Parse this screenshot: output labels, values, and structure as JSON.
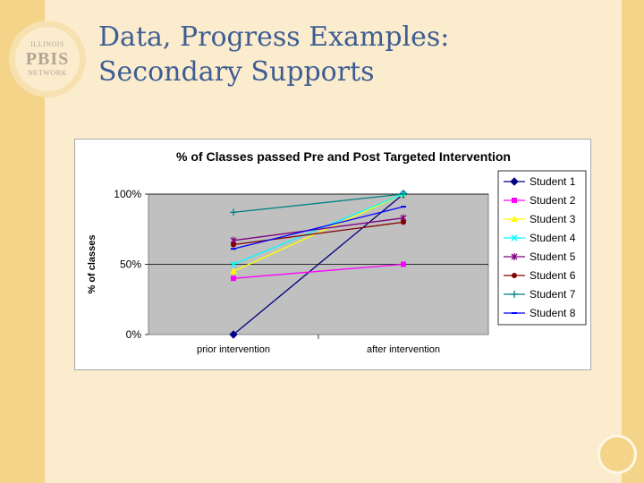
{
  "slide": {
    "title_line1": "Data, Progress Examples:",
    "title_line2": "Secondary Supports"
  },
  "logo": {
    "top_text": "ILLINOIS",
    "main_text": "PBIS",
    "bottom_text": "NETWORK"
  },
  "colors": {
    "background": "#fbeccd",
    "band": "#f3d489",
    "title": "#3e5d94",
    "plot_area": "#c0c0c0"
  },
  "chart_data": {
    "type": "line",
    "title": "% of Classes passed Pre and Post Targeted Intervention",
    "xlabel": "",
    "ylabel": "% of classes",
    "categories": [
      "prior intervention",
      "after intervention"
    ],
    "ylim": [
      0,
      100
    ],
    "yticks": [
      "0%",
      "50%",
      "100%"
    ],
    "grid": true,
    "legend_position": "right",
    "series": [
      {
        "name": "Student 1",
        "values": [
          0,
          100
        ],
        "color": "#000080",
        "marker": "diamond"
      },
      {
        "name": "Student 2",
        "values": [
          40,
          50
        ],
        "color": "#ff00ff",
        "marker": "square"
      },
      {
        "name": "Student 3",
        "values": [
          45,
          100
        ],
        "color": "#ffff00",
        "marker": "triangle"
      },
      {
        "name": "Student 4",
        "values": [
          50,
          100
        ],
        "color": "#00ffff",
        "marker": "x"
      },
      {
        "name": "Student 5",
        "values": [
          67,
          83
        ],
        "color": "#800080",
        "marker": "star"
      },
      {
        "name": "Student 6",
        "values": [
          64,
          80
        ],
        "color": "#800000",
        "marker": "circle"
      },
      {
        "name": "Student 7",
        "values": [
          87,
          100
        ],
        "color": "#008080",
        "marker": "plus"
      },
      {
        "name": "Student 8",
        "values": [
          61,
          91
        ],
        "color": "#0000ff",
        "marker": "dash"
      }
    ]
  }
}
